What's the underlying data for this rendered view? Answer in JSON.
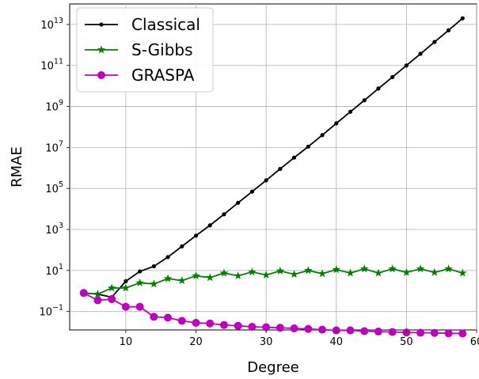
{
  "chart_data": {
    "type": "line",
    "title": "",
    "xlabel": "Degree",
    "ylabel": "RMAE",
    "xlim": [
      2.0,
      60.0
    ],
    "ylim_log10": [
      -1.9,
      14.0
    ],
    "yscale": "log",
    "grid": true,
    "legend_position": "top-left",
    "x_ticks": [
      10,
      20,
      30,
      40,
      50,
      60
    ],
    "x_tick_labels": [
      "10",
      "20",
      "30",
      "40",
      "50",
      "60"
    ],
    "y_ticks_log10": [
      -1,
      1,
      3,
      5,
      7,
      9,
      11,
      13
    ],
    "y_tick_labels": [
      {
        "base": "10",
        "exp": "−1"
      },
      {
        "base": "10",
        "exp": "1"
      },
      {
        "base": "10",
        "exp": "3"
      },
      {
        "base": "10",
        "exp": "5"
      },
      {
        "base": "10",
        "exp": "7"
      },
      {
        "base": "10",
        "exp": "9"
      },
      {
        "base": "10",
        "exp": "11"
      },
      {
        "base": "10",
        "exp": "13"
      }
    ],
    "x": [
      4,
      6,
      8,
      10,
      12,
      14,
      16,
      18,
      20,
      22,
      24,
      26,
      28,
      30,
      32,
      34,
      36,
      38,
      40,
      42,
      44,
      46,
      48,
      50,
      52,
      54,
      56,
      58
    ],
    "series": [
      {
        "name": "Classical",
        "color": "#000000",
        "marker": "dot",
        "y": [
          0.8,
          0.7,
          0.5,
          3,
          9,
          16,
          45,
          150,
          500,
          1600,
          5500,
          20000,
          70000,
          250000,
          900000,
          3200000,
          11000000,
          40000000,
          150000000,
          550000000,
          2000000000,
          7500000000,
          27000000000,
          100000000000,
          370000000000,
          1400000000000,
          5200000000000,
          20000000000000
        ]
      },
      {
        "name": "S-Gibbs",
        "color": "#008000",
        "marker": "star",
        "y": [
          0.8,
          0.7,
          1.4,
          1.4,
          2.5,
          2.2,
          4,
          3.2,
          5.5,
          4.5,
          7.5,
          5.5,
          8.5,
          6,
          9.5,
          6.5,
          10,
          7,
          11,
          7.5,
          12,
          7.5,
          12,
          8,
          12,
          8,
          12,
          7.5
        ]
      },
      {
        "name": "GRASPA",
        "color": "#bf00bf",
        "marker": "circle",
        "y": [
          0.8,
          0.35,
          0.4,
          0.17,
          0.17,
          0.055,
          0.05,
          0.035,
          0.028,
          0.026,
          0.022,
          0.02,
          0.018,
          0.017,
          0.016,
          0.015,
          0.014,
          0.013,
          0.012,
          0.012,
          0.011,
          0.0105,
          0.01,
          0.0095,
          0.0092,
          0.009,
          0.0086,
          0.0084
        ]
      }
    ]
  }
}
